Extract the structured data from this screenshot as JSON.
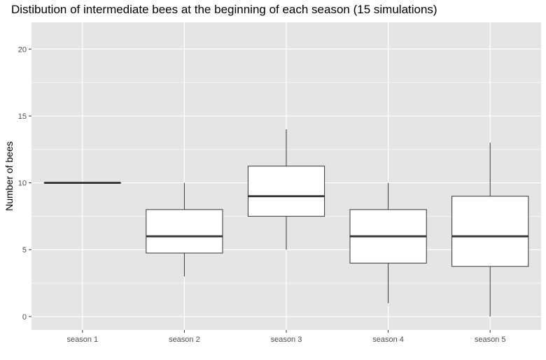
{
  "chart_data": {
    "type": "box",
    "title": "Distibution of intermediate bees at the beginning of each season (15 simulations)",
    "xlabel": "",
    "ylabel": "Number of bees",
    "ylim": [
      -1,
      22
    ],
    "yticks": [
      0,
      5,
      10,
      15,
      20
    ],
    "grid": true,
    "categories": [
      "season 1",
      "season 2",
      "season 3",
      "season 4",
      "season 5"
    ],
    "boxes": [
      {
        "category": "season 1",
        "min": 10,
        "q1": 10,
        "median": 10,
        "q3": 10,
        "max": 10
      },
      {
        "category": "season 2",
        "min": 3,
        "q1": 4.75,
        "median": 6,
        "q3": 8,
        "max": 10
      },
      {
        "category": "season 3",
        "min": 5,
        "q1": 7.5,
        "median": 9,
        "q3": 11.25,
        "max": 14
      },
      {
        "category": "season 4",
        "min": 1,
        "q1": 4,
        "median": 6,
        "q3": 8,
        "max": 10
      },
      {
        "category": "season 5",
        "min": 0,
        "q1": 3.75,
        "median": 6,
        "q3": 9,
        "max": 13
      }
    ],
    "colors": {
      "panel": "#e5e5e5",
      "grid": "#ffffff",
      "box_fill": "#ffffff",
      "box_stroke": "#333333",
      "tick_text": "#4d4d4d"
    }
  }
}
